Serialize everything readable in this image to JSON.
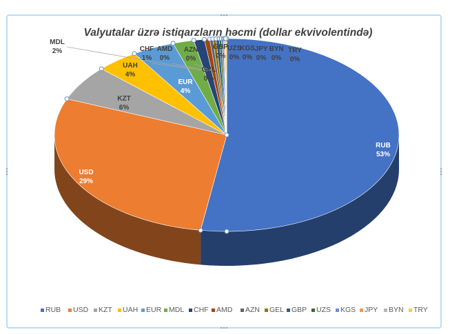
{
  "chart_data": {
    "type": "pie",
    "style": "3d",
    "title": "Valyutalar üzrə istiqarzların həcmi (dollar ekvivolentində)",
    "legend_position": "bottom",
    "slices": [
      {
        "name": "RUB",
        "value": 53,
        "label_name": "RUB",
        "label_pct": "53%",
        "color": "#4472c4"
      },
      {
        "name": "USD",
        "value": 29,
        "label_name": "USD",
        "label_pct": "29%",
        "color": "#ed7d31"
      },
      {
        "name": "KZT",
        "value": 6,
        "label_name": "KZT",
        "label_pct": "6%",
        "color": "#a5a5a5"
      },
      {
        "name": "UAH",
        "value": 4,
        "label_name": "UAH",
        "label_pct": "4%",
        "color": "#ffc000"
      },
      {
        "name": "EUR",
        "value": 4,
        "label_name": "EUR",
        "label_pct": "4%",
        "color": "#5b9bd5"
      },
      {
        "name": "MDL",
        "value": 2,
        "label_name": "MDL",
        "label_pct": "2%",
        "color": "#70ad47"
      },
      {
        "name": "CHF",
        "value": 1,
        "label_name": "CHF",
        "label_pct": "1%",
        "color": "#264478"
      },
      {
        "name": "AMD",
        "value": 0.5,
        "label_name": "AMD",
        "label_pct": "0%",
        "color": "#9e480e"
      },
      {
        "name": "AZN",
        "value": 0.3,
        "label_name": "AZN",
        "label_pct": "0%",
        "color": "#636363"
      },
      {
        "name": "GEL",
        "value": 0.3,
        "label_name": "GEL",
        "label_pct": "0%",
        "color": "#997300"
      },
      {
        "name": "GBP",
        "value": 0.3,
        "label_name": "GBP",
        "label_pct": "0%",
        "color": "#255e91"
      },
      {
        "name": "UZS",
        "value": 0.2,
        "label_name": "UZS",
        "label_pct": "0%",
        "color": "#43682b"
      },
      {
        "name": "KGS",
        "value": 0.2,
        "label_name": "KGS",
        "label_pct": "0%",
        "color": "#698ed0"
      },
      {
        "name": "JPY",
        "value": 0.1,
        "label_name": "JPY",
        "label_pct": "0%",
        "color": "#f1975a"
      },
      {
        "name": "BYN",
        "value": 0.1,
        "label_name": "BYN",
        "label_pct": "0%",
        "color": "#b7b7b7"
      },
      {
        "name": "TRY",
        "value": 0.1,
        "label_name": "TRY",
        "label_pct": "0%",
        "color": "#ffcd33"
      }
    ]
  }
}
